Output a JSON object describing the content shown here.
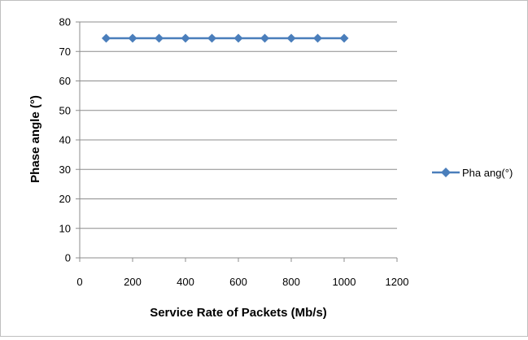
{
  "chart_data": {
    "type": "line",
    "title": "",
    "xlabel": "Service Rate of Packets (Mb/s)",
    "ylabel": "Phase angle (°)",
    "xlim": [
      0,
      1200
    ],
    "ylim": [
      0,
      80
    ],
    "xticks": [
      0,
      200,
      400,
      600,
      800,
      1000,
      1200
    ],
    "yticks": [
      0,
      10,
      20,
      30,
      40,
      50,
      60,
      70,
      80
    ],
    "grid": "horizontal",
    "legend_position": "right",
    "series": [
      {
        "name": "Pha ang(°)",
        "color": "#4a7ebb",
        "marker": "diamond",
        "x": [
          100,
          200,
          300,
          400,
          500,
          600,
          700,
          800,
          900,
          1000
        ],
        "y": [
          74.5,
          74.5,
          74.5,
          74.5,
          74.5,
          74.5,
          74.5,
          74.5,
          74.5,
          74.5
        ]
      }
    ]
  }
}
